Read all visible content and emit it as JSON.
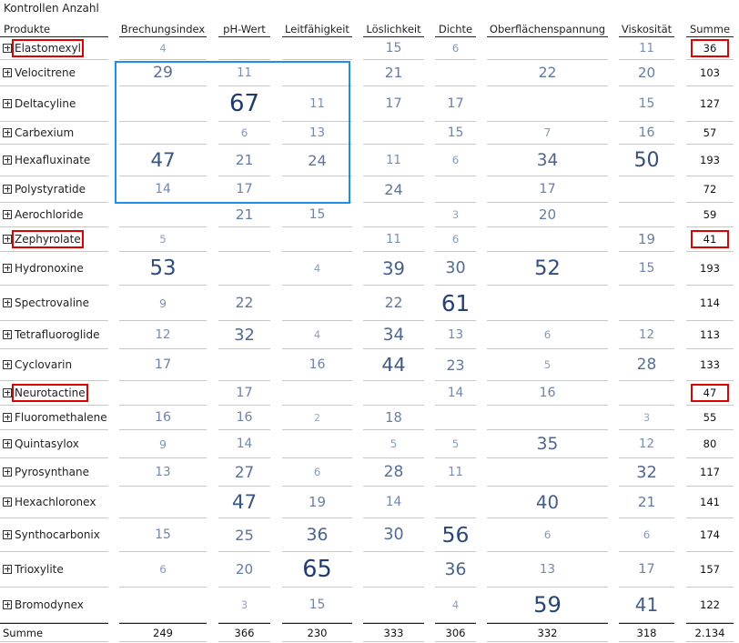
{
  "title": "Kontrollen Anzahl",
  "columns": [
    "Produkte",
    "Brechungsindex",
    "pH-Wert",
    "Leitfähigkeit",
    "Löslichkeit",
    "Dichte",
    "Oberflächenspannung",
    "Viskosität",
    "Summe"
  ],
  "rows": [
    {
      "name": "Elastomexyl",
      "values": [
        4,
        null,
        null,
        15,
        6,
        null,
        11
      ],
      "sum": "36",
      "highlight": true
    },
    {
      "name": "Velocitrene",
      "values": [
        29,
        11,
        null,
        21,
        null,
        22,
        20
      ],
      "sum": "103"
    },
    {
      "name": "Deltacyline",
      "values": [
        null,
        67,
        11,
        17,
        17,
        null,
        15
      ],
      "sum": "127"
    },
    {
      "name": "Carbexium",
      "values": [
        null,
        6,
        13,
        null,
        15,
        7,
        16
      ],
      "sum": "57"
    },
    {
      "name": "Hexafluxinate",
      "values": [
        47,
        21,
        24,
        11,
        6,
        34,
        50
      ],
      "sum": "193"
    },
    {
      "name": "Polystyratide",
      "values": [
        14,
        17,
        null,
        24,
        null,
        17,
        null
      ],
      "sum": "72"
    },
    {
      "name": "Aerochloride",
      "values": [
        null,
        21,
        15,
        null,
        3,
        20,
        null
      ],
      "sum": "59"
    },
    {
      "name": "Zephyrolate",
      "values": [
        5,
        null,
        null,
        11,
        6,
        null,
        19
      ],
      "sum": "41",
      "highlight": true
    },
    {
      "name": "Hydronoxine",
      "values": [
        53,
        null,
        4,
        39,
        30,
        52,
        15
      ],
      "sum": "193"
    },
    {
      "name": "Spectrovaline",
      "values": [
        9,
        22,
        null,
        22,
        61,
        null,
        null
      ],
      "sum": "114"
    },
    {
      "name": "Tetrafluoroglide",
      "values": [
        12,
        32,
        4,
        34,
        13,
        6,
        12
      ],
      "sum": "113"
    },
    {
      "name": "Cyclovarin",
      "values": [
        17,
        null,
        16,
        44,
        23,
        5,
        28
      ],
      "sum": "133"
    },
    {
      "name": "Neurotactine",
      "values": [
        null,
        17,
        null,
        null,
        14,
        16,
        null
      ],
      "sum": "47",
      "highlight": true
    },
    {
      "name": "Fluoromethalene",
      "values": [
        16,
        16,
        2,
        18,
        null,
        null,
        3
      ],
      "sum": "55"
    },
    {
      "name": "Quintasylox",
      "values": [
        9,
        14,
        null,
        5,
        5,
        35,
        12
      ],
      "sum": "80"
    },
    {
      "name": "Pyrosynthane",
      "values": [
        13,
        27,
        6,
        28,
        11,
        null,
        32
      ],
      "sum": "117"
    },
    {
      "name": "Hexachloronex",
      "values": [
        null,
        47,
        19,
        14,
        null,
        40,
        21
      ],
      "sum": "141"
    },
    {
      "name": "Synthocarbonix",
      "values": [
        15,
        25,
        36,
        30,
        56,
        6,
        6
      ],
      "sum": "174"
    },
    {
      "name": "Trioxylite",
      "values": [
        6,
        20,
        65,
        null,
        36,
        13,
        17
      ],
      "sum": "157"
    },
    {
      "name": "Bromodynex",
      "values": [
        null,
        3,
        15,
        null,
        4,
        59,
        41
      ],
      "sum": "122"
    }
  ],
  "total": {
    "label": "Summe",
    "values": [
      "249",
      "366",
      "230",
      "333",
      "306",
      "332",
      "318"
    ],
    "sum": "2.134"
  },
  "colors": {
    "value_light": "#9aa9c6",
    "value_dark": "#1c3a6e",
    "selection": "#1e8fe8",
    "highlight": "#e00000"
  },
  "icons": {
    "expand": "plus-box-icon"
  }
}
